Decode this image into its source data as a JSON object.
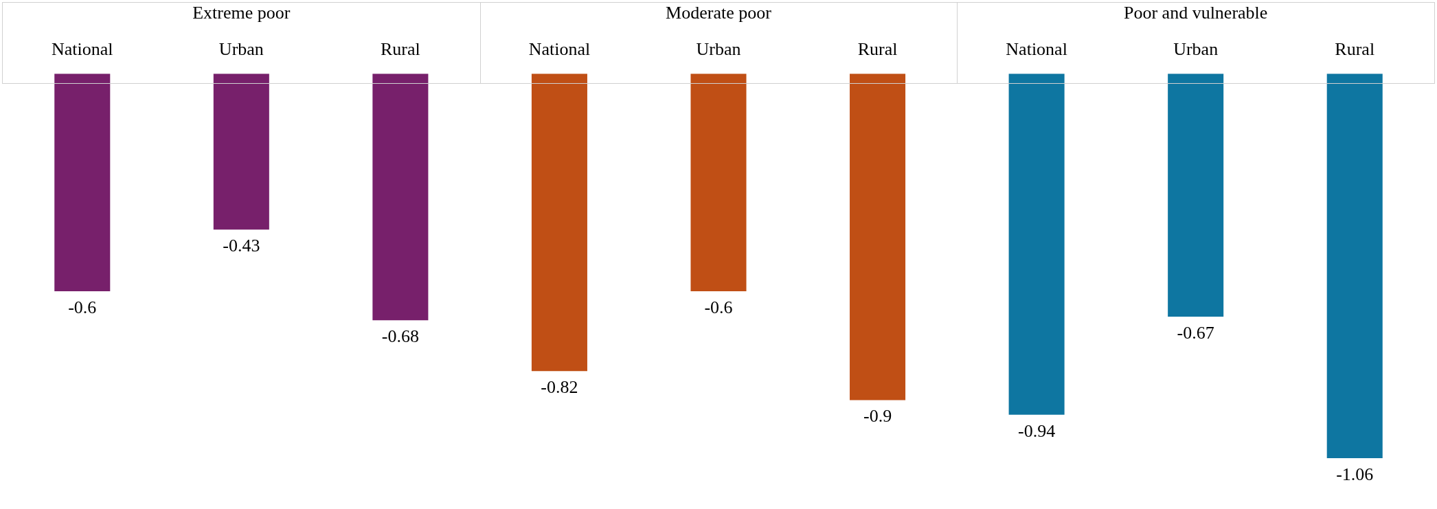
{
  "chart_data": {
    "type": "bar",
    "stacked": true,
    "categories": [
      "National",
      "Urban",
      "Rural",
      "National",
      "Urban",
      "Rural",
      "National",
      "Urban",
      "Rural"
    ],
    "series": [
      {
        "color": "#77206b",
        "values": [
          -0.6,
          -0.43,
          -0.68,
          null,
          null,
          null,
          null,
          null,
          null
        ]
      },
      {
        "color": "#c04f15",
        "values": [
          null,
          null,
          null,
          -0.82,
          -0.6,
          -0.9,
          null,
          null,
          null
        ]
      },
      {
        "color": "#0e76a1",
        "values": [
          null,
          null,
          null,
          null,
          null,
          null,
          -0.94,
          -0.67,
          -1.06
        ]
      }
    ],
    "annotations": [
      "Extreme poor",
      "Moderate poor",
      "Poor and vulnerable"
    ],
    "data_labels": true,
    "grid": false,
    "tick_labels": "x"
  }
}
